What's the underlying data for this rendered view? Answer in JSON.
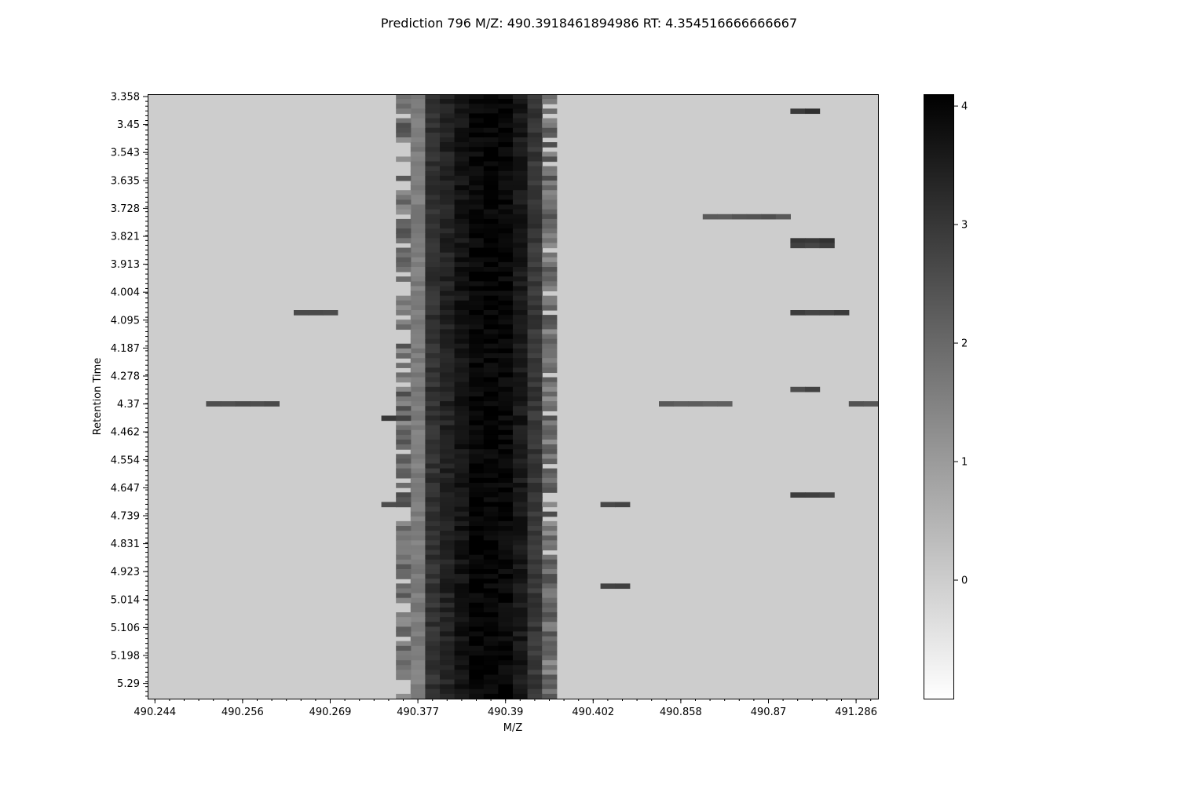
{
  "chart_data": {
    "type": "heatmap",
    "title": "Prediction 796 M/Z: 490.3918461894986  RT: 4.354516666666667",
    "xlabel": "M/Z",
    "ylabel": "Retention Time",
    "x_tick_labels": [
      "490.244",
      "490.256",
      "490.269",
      "490.377",
      "490.39",
      "490.402",
      "490.858",
      "490.87",
      "491.286"
    ],
    "y_tick_labels": [
      "3.358",
      "3.45",
      "3.543",
      "3.635",
      "3.728",
      "3.821",
      "3.913",
      "4.004",
      "4.095",
      "4.187",
      "4.278",
      "4.37",
      "4.462",
      "4.554",
      "4.647",
      "4.739",
      "4.831",
      "4.923",
      "5.014",
      "5.106",
      "5.198",
      "5.29"
    ],
    "n_columns": 50,
    "n_rows": 126,
    "value_range": [
      -1,
      4.1
    ],
    "background_value": 0,
    "colormap": "Greys",
    "colorbar": {
      "ticks": [
        0,
        1,
        2,
        3,
        4
      ],
      "tick_labels": [
        "0",
        "1",
        "2",
        "3",
        "4"
      ]
    },
    "dense_band": {
      "columns": [
        18,
        19,
        20,
        21,
        22,
        23,
        24,
        25,
        26
      ],
      "column_mean_values": [
        1.6,
        3.1,
        3.4,
        3.7,
        3.95,
        4.0,
        3.95,
        3.6,
        3.0
      ],
      "edge_columns": [
        17,
        27
      ],
      "edge_value_range": [
        1.2,
        2.6
      ]
    },
    "isolated_segments": [
      {
        "row": 45,
        "col_start": 10,
        "col_end": 12,
        "value": 2.6
      },
      {
        "row": 64,
        "col_start": 4,
        "col_end": 8,
        "value": 2.5
      },
      {
        "row": 64,
        "col_start": 35,
        "col_end": 39,
        "value": 2.2
      },
      {
        "row": 64,
        "col_start": 48,
        "col_end": 49,
        "value": 2.5
      },
      {
        "row": 25,
        "col_start": 38,
        "col_end": 43,
        "value": 2.4
      },
      {
        "row": 3,
        "col_start": 44,
        "col_end": 45,
        "value": 3.0
      },
      {
        "row": 30,
        "col_start": 44,
        "col_end": 46,
        "value": 3.0
      },
      {
        "row": 31,
        "col_start": 44,
        "col_end": 46,
        "value": 2.8
      },
      {
        "row": 45,
        "col_start": 44,
        "col_end": 47,
        "value": 2.8
      },
      {
        "row": 61,
        "col_start": 44,
        "col_end": 45,
        "value": 2.7
      },
      {
        "row": 83,
        "col_start": 44,
        "col_end": 46,
        "value": 2.8
      },
      {
        "row": 85,
        "col_start": 31,
        "col_end": 32,
        "value": 2.8
      },
      {
        "row": 102,
        "col_start": 31,
        "col_end": 32,
        "value": 2.8
      },
      {
        "row": 67,
        "col_start": 16,
        "col_end": 17,
        "value": 2.9
      },
      {
        "row": 85,
        "col_start": 16,
        "col_end": 17,
        "value": 2.7
      }
    ]
  }
}
